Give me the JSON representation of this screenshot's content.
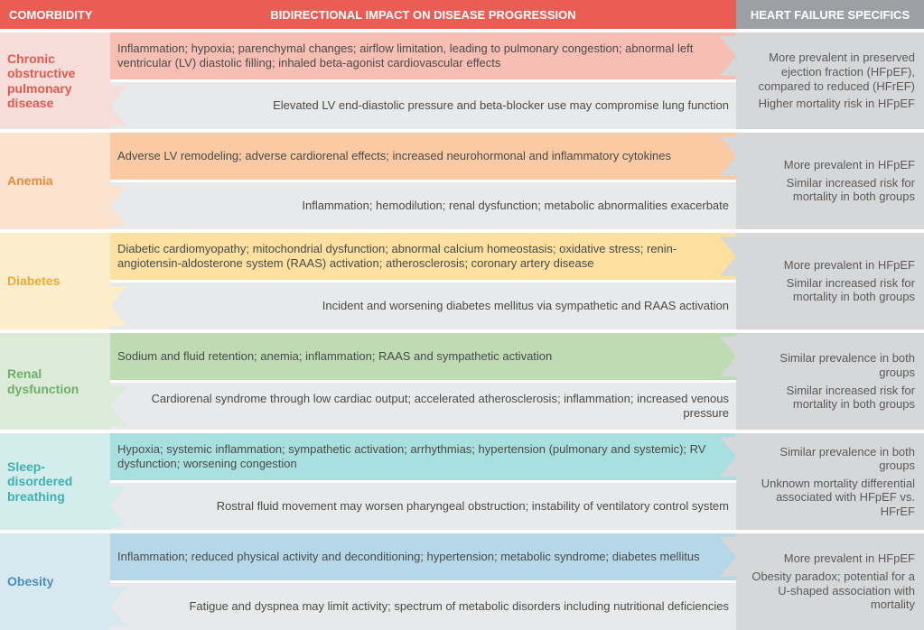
{
  "header": {
    "left": "COMORBIDITY",
    "mid": "BIDIRECTIONAL IMPACT ON DISEASE PROGRESSION",
    "right": "HEART FAILURE SPECIFICS",
    "left_color": "#eb5d54",
    "mid_color": "#eb5d54",
    "right_color": "#9c9fa3"
  },
  "sections": [
    {
      "label": "Chronic obstructive pulmonary disease",
      "label_bg": "#f6ddd9",
      "label_color": "#e15a4f",
      "arrow_top_bg": "#f7beb4",
      "arrow_bot_bg": "#e8e9ea",
      "tip_top": "#f7beb4",
      "tip_bot": "#e8e9ea",
      "top_text": "Inflammation; hypoxia; parenchymal changes; airflow limitation, leading to pulmonary congestion; abnormal left ventricular (LV) diastolic filling; inhaled beta-agonist cardiovascular effects",
      "bot_text": "Elevated LV end-diastolic pressure and beta-blocker use may compromise lung function",
      "right1": "More prevalent in preserved ejection fraction (HFpEF), compared to reduced (HFrEF)",
      "right2": "Higher mortality risk in HFpEF"
    },
    {
      "label": "Anemia",
      "label_bg": "#fce3d0",
      "label_color": "#e98a3e",
      "arrow_top_bg": "#f9caa4",
      "arrow_bot_bg": "#e8e9ea",
      "tip_top": "#f9caa4",
      "tip_bot": "#e8e9ea",
      "top_text": "Adverse LV remodeling; adverse cardiorenal effects; increased neurohormonal and inflammatory cytokines",
      "bot_text": "Inflammation; hemodilution; renal dysfunction; metabolic abnormalities exacerbate",
      "right1": "More prevalent in HFpEF",
      "right2": "Similar increased risk for mortality in both groups"
    },
    {
      "label": "Diabetes",
      "label_bg": "#fdeecb",
      "label_color": "#e9a83a",
      "arrow_top_bg": "#fbe0a0",
      "arrow_bot_bg": "#e8e9ea",
      "tip_top": "#fbe0a0",
      "tip_bot": "#e8e9ea",
      "top_text": "Diabetic cardiomyopathy; mitochondrial dysfunction; abnormal calcium homeostasis; oxidative stress; renin-angiotensin-aldosterone system (RAAS) activation; atherosclerosis; coronary artery disease",
      "bot_text": "Incident and worsening diabetes mellitus via sympathetic and RAAS activation",
      "right1": "More prevalent in HFpEF",
      "right2": "Similar increased risk for mortality in both groups"
    },
    {
      "label": "Renal dysfunction",
      "label_bg": "#dcebd8",
      "label_color": "#6fae6a",
      "arrow_top_bg": "#bedcb3",
      "arrow_bot_bg": "#e8e9ea",
      "tip_top": "#bedcb3",
      "tip_bot": "#e8e9ea",
      "top_text": "Sodium and fluid retention; anemia; inflammation; RAAS and sympathetic activation",
      "bot_text": "Cardiorenal syndrome through low cardiac output; accelerated atherosclerosis; inflammation; increased venous pressure",
      "right1": "Similar prevalence in both groups",
      "right2": "Similar increased risk for mortality in both groups"
    },
    {
      "label": "Sleep-disordered breathing",
      "label_bg": "#d3edec",
      "label_color": "#3fb0b0",
      "arrow_top_bg": "#a9e0df",
      "arrow_bot_bg": "#e8e9ea",
      "tip_top": "#a9e0df",
      "tip_bot": "#e8e9ea",
      "top_text": "Hypoxia; systemic inflammation; sympathetic activation; arrhythmias; hypertension (pulmonary and systemic); RV dysfunction; worsening congestion",
      "bot_text": "Rostral fluid movement may worsen pharyngeal obstruction; instability of ventilatory control system",
      "right1": "Similar prevalence in both groups",
      "right2": "Unknown mortality differential associated with HFpEF vs. HFrEF"
    },
    {
      "label": "Obesity",
      "label_bg": "#d8e8f1",
      "label_color": "#4a8fb8",
      "arrow_top_bg": "#b6d7e8",
      "arrow_bot_bg": "#e8e9ea",
      "tip_top": "#b6d7e8",
      "tip_bot": "#e8e9ea",
      "top_text": "Inflammation; reduced physical activity and deconditioning; hypertension; metabolic syndrome; diabetes mellitus",
      "bot_text": "Fatigue and dyspnea may limit activity; spectrum of metabolic disorders including nutritional deficiencies",
      "right1": "More prevalent in HFpEF",
      "right2": "Obesity paradox; potential for a U-shaped association with mortality"
    }
  ]
}
